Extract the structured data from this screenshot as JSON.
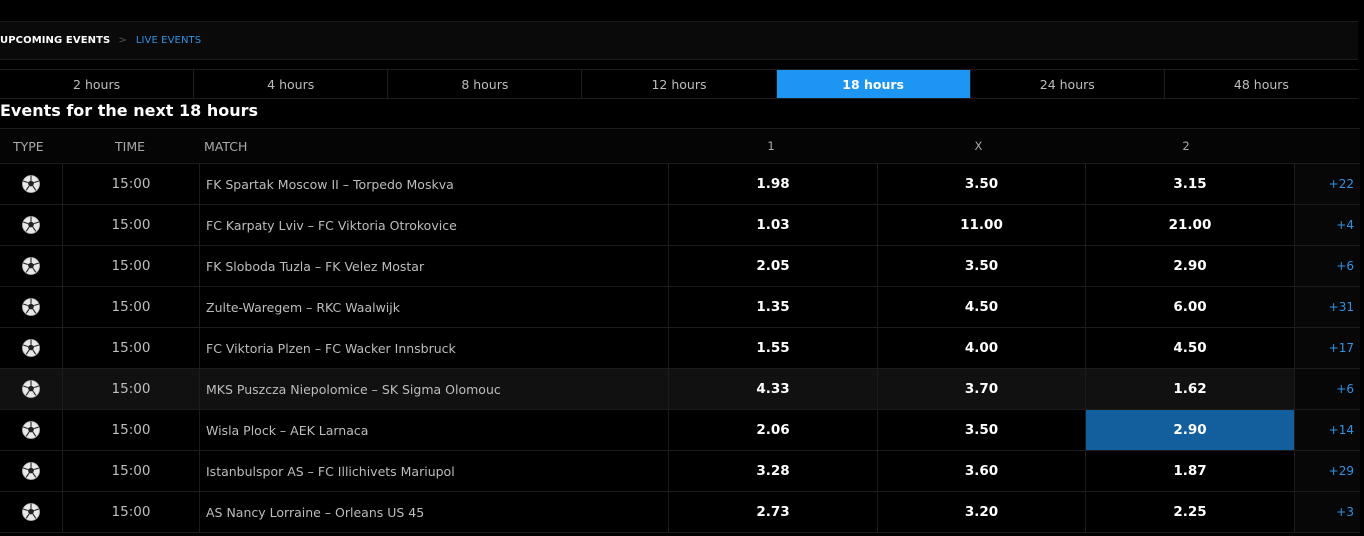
{
  "breadcrumb": {
    "current": "UPCOMING EVENTS",
    "separator": ">",
    "link": "LIVE EVENTS"
  },
  "tabs": [
    {
      "label": "2 hours",
      "active": false
    },
    {
      "label": "4 hours",
      "active": false
    },
    {
      "label": "8 hours",
      "active": false
    },
    {
      "label": "12 hours",
      "active": false
    },
    {
      "label": "18 hours",
      "active": true
    },
    {
      "label": "24 hours",
      "active": false
    },
    {
      "label": "48 hours",
      "active": false
    }
  ],
  "section_title": "Events for the next 18 hours",
  "columns": {
    "type": "TYPE",
    "time": "TIME",
    "match": "MATCH",
    "home": "1",
    "draw": "X",
    "away": "2"
  },
  "rows": [
    {
      "sport_icon": "soccer-ball-icon",
      "time": "15:00",
      "match": "FK Spartak Moscow II – Torpedo Moskva",
      "home": "1.98",
      "draw": "3.50",
      "away": "3.15",
      "more": "+22"
    },
    {
      "sport_icon": "soccer-ball-icon",
      "time": "15:00",
      "match": "FC Karpaty Lviv – FC Viktoria Otrokovice",
      "home": "1.03",
      "draw": "11.00",
      "away": "21.00",
      "more": "+4"
    },
    {
      "sport_icon": "soccer-ball-icon",
      "time": "15:00",
      "match": "FK Sloboda Tuzla – FK Velez Mostar",
      "home": "2.05",
      "draw": "3.50",
      "away": "2.90",
      "more": "+6"
    },
    {
      "sport_icon": "soccer-ball-icon",
      "time": "15:00",
      "match": "Zulte-Waregem – RKC Waalwijk",
      "home": "1.35",
      "draw": "4.50",
      "away": "6.00",
      "more": "+31"
    },
    {
      "sport_icon": "soccer-ball-icon",
      "time": "15:00",
      "match": "FC Viktoria Plzen – FC Wacker Innsbruck",
      "home": "1.55",
      "draw": "4.00",
      "away": "4.50",
      "more": "+17"
    },
    {
      "sport_icon": "soccer-ball-icon",
      "time": "15:00",
      "match": "MKS Puszcza Niepolomice – SK Sigma Olomouc",
      "home": "4.33",
      "draw": "3.70",
      "away": "1.62",
      "more": "+6",
      "highlighted": true
    },
    {
      "sport_icon": "soccer-ball-icon",
      "time": "15:00",
      "match": "Wisla Plock – AEK Larnaca",
      "home": "2.06",
      "draw": "3.50",
      "away": "2.90",
      "more": "+14",
      "selected": "away"
    },
    {
      "sport_icon": "soccer-ball-icon",
      "time": "15:00",
      "match": "Istanbulspor AS – FC Illichivets Mariupol",
      "home": "3.28",
      "draw": "3.60",
      "away": "1.87",
      "more": "+29"
    },
    {
      "sport_icon": "soccer-ball-icon",
      "time": "15:00",
      "match": "AS Nancy Lorraine – Orleans US 45",
      "home": "2.73",
      "draw": "3.20",
      "away": "2.25",
      "more": "+3"
    }
  ],
  "colors": {
    "accent": "#1d95f3",
    "selected_odd": "#135f9d",
    "link": "#2f93e5"
  }
}
